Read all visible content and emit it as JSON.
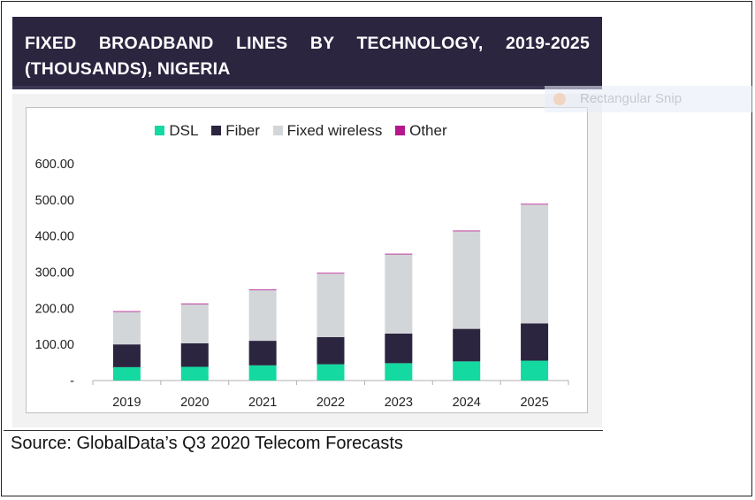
{
  "title": "FIXED BROADBAND LINES BY TECHNOLOGY, 2019-2025 (THOUSANDS), NIGERIA",
  "source": "Source: GlobalData’s Q3 2020 Telecom Forecasts",
  "overlay": {
    "label": "Rectangular Snip"
  },
  "colors": {
    "title_bg": "#2b2540",
    "dsl": "#14d9a0",
    "fiber": "#2b2540",
    "fixed_wireless": "#d3d6d9",
    "other": "#b5178c"
  },
  "chart_data": {
    "type": "bar",
    "stacked": true,
    "categories": [
      "2019",
      "2020",
      "2021",
      "2022",
      "2023",
      "2024",
      "2025"
    ],
    "series": [
      {
        "name": "DSL",
        "color": "#14d9a0",
        "values": [
          37,
          38,
          42,
          45,
          48,
          53,
          55
        ]
      },
      {
        "name": "Fiber",
        "color": "#2b2540",
        "values": [
          63,
          65,
          68,
          75,
          82,
          90,
          103
        ]
      },
      {
        "name": "Fixed wireless",
        "color": "#d3d6d9",
        "values": [
          90,
          108,
          140,
          176,
          219,
          270,
          329
        ]
      },
      {
        "name": "Other",
        "color": "#b5178c",
        "values": [
          2,
          2,
          2,
          2,
          2,
          2,
          2
        ]
      }
    ],
    "y_tick_labels": [
      "-",
      "100.00",
      "200.00",
      "300.00",
      "400.00",
      "500.00",
      "600.00"
    ],
    "y_ticks": [
      0,
      100,
      200,
      300,
      400,
      500,
      600
    ],
    "ylim": [
      0,
      600
    ],
    "grid": false,
    "legend_position": "top"
  }
}
